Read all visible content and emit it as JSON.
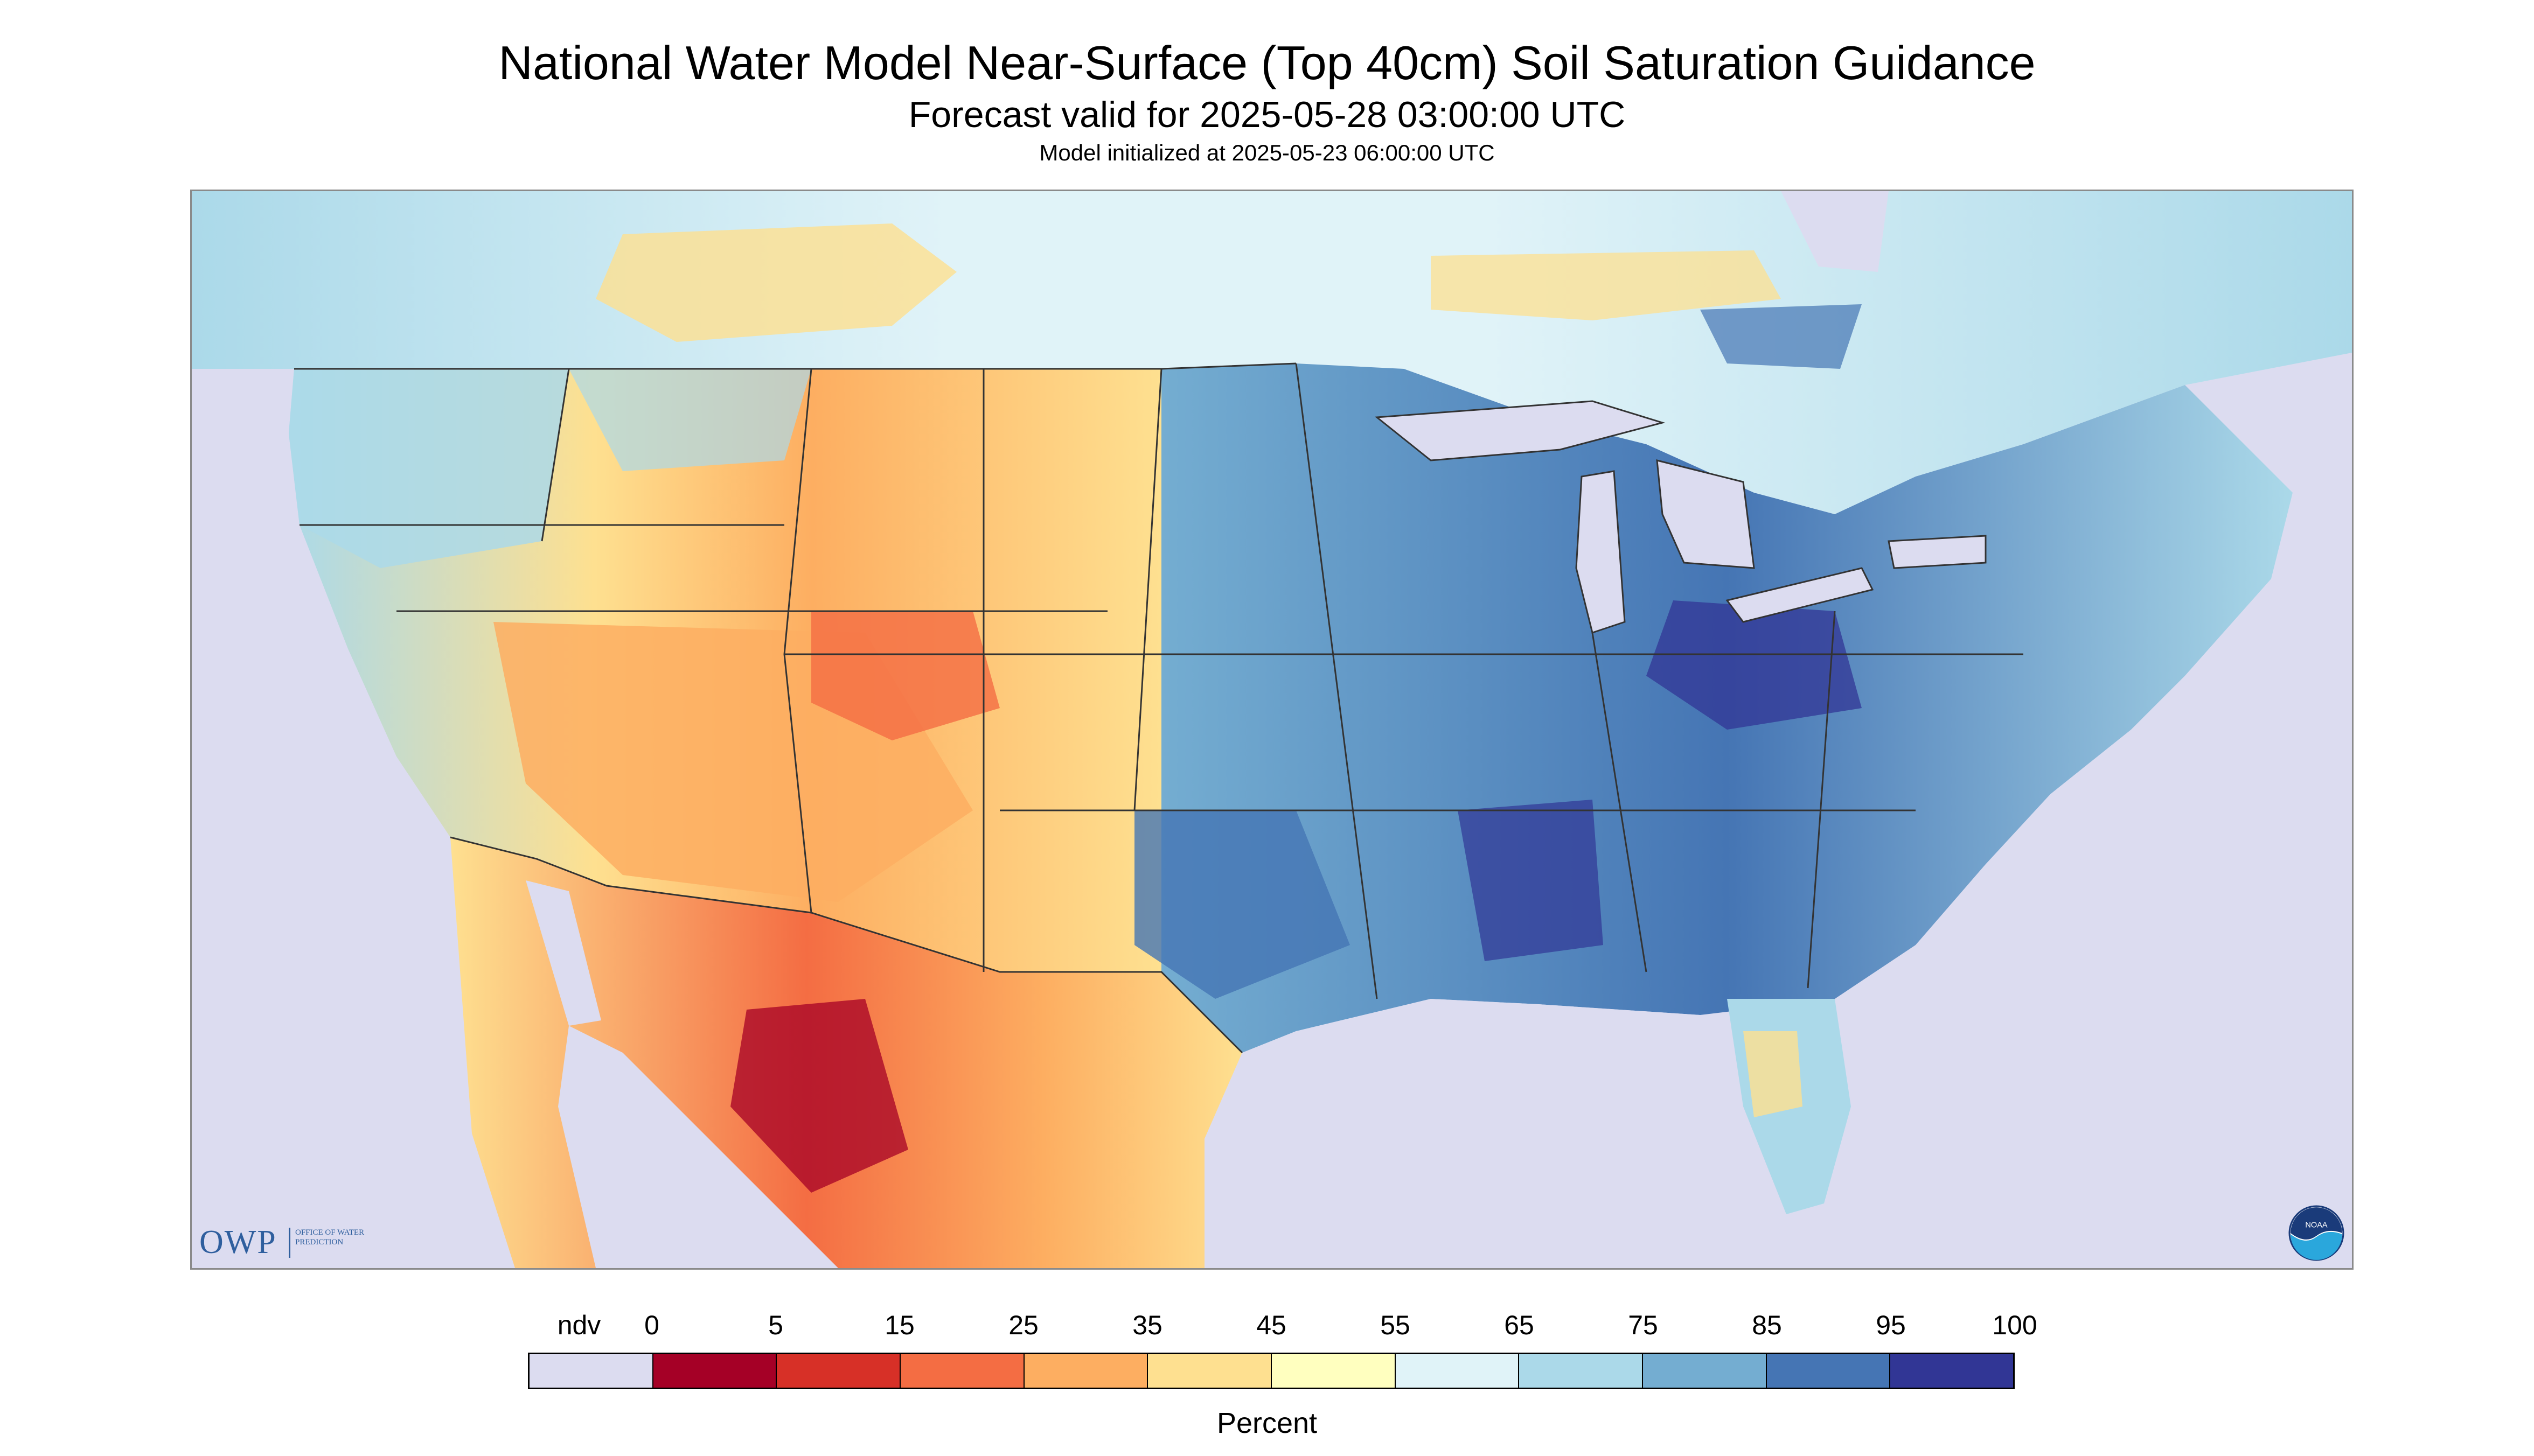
{
  "title": "National Water Model Near-Surface (Top 40cm) Soil Saturation Guidance",
  "subtitle": "Forecast valid for 2025-05-28 03:00:00 UTC",
  "init_line": "Model initialized at 2025-05-23 06:00:00 UTC",
  "logos": {
    "owp_mark": "OWP",
    "owp_text": "OFFICE OF WATER PREDICTION",
    "noaa_text": "NOAA"
  },
  "legend": {
    "ticks": [
      "ndv",
      "0",
      "5",
      "15",
      "25",
      "35",
      "45",
      "55",
      "65",
      "75",
      "85",
      "95",
      "100"
    ],
    "colors": [
      "#dcdcf0",
      "#a50026",
      "#d73027",
      "#f46d43",
      "#fdae61",
      "#fee090",
      "#ffffbf",
      "#e0f3f8",
      "#abd9e9",
      "#74add1",
      "#4575b4",
      "#313695"
    ],
    "units_label": "Percent"
  },
  "map": {
    "no_data_color": "#dcdcf0",
    "water_color": "#dcdcf0",
    "boundary_color": "#333333"
  }
}
